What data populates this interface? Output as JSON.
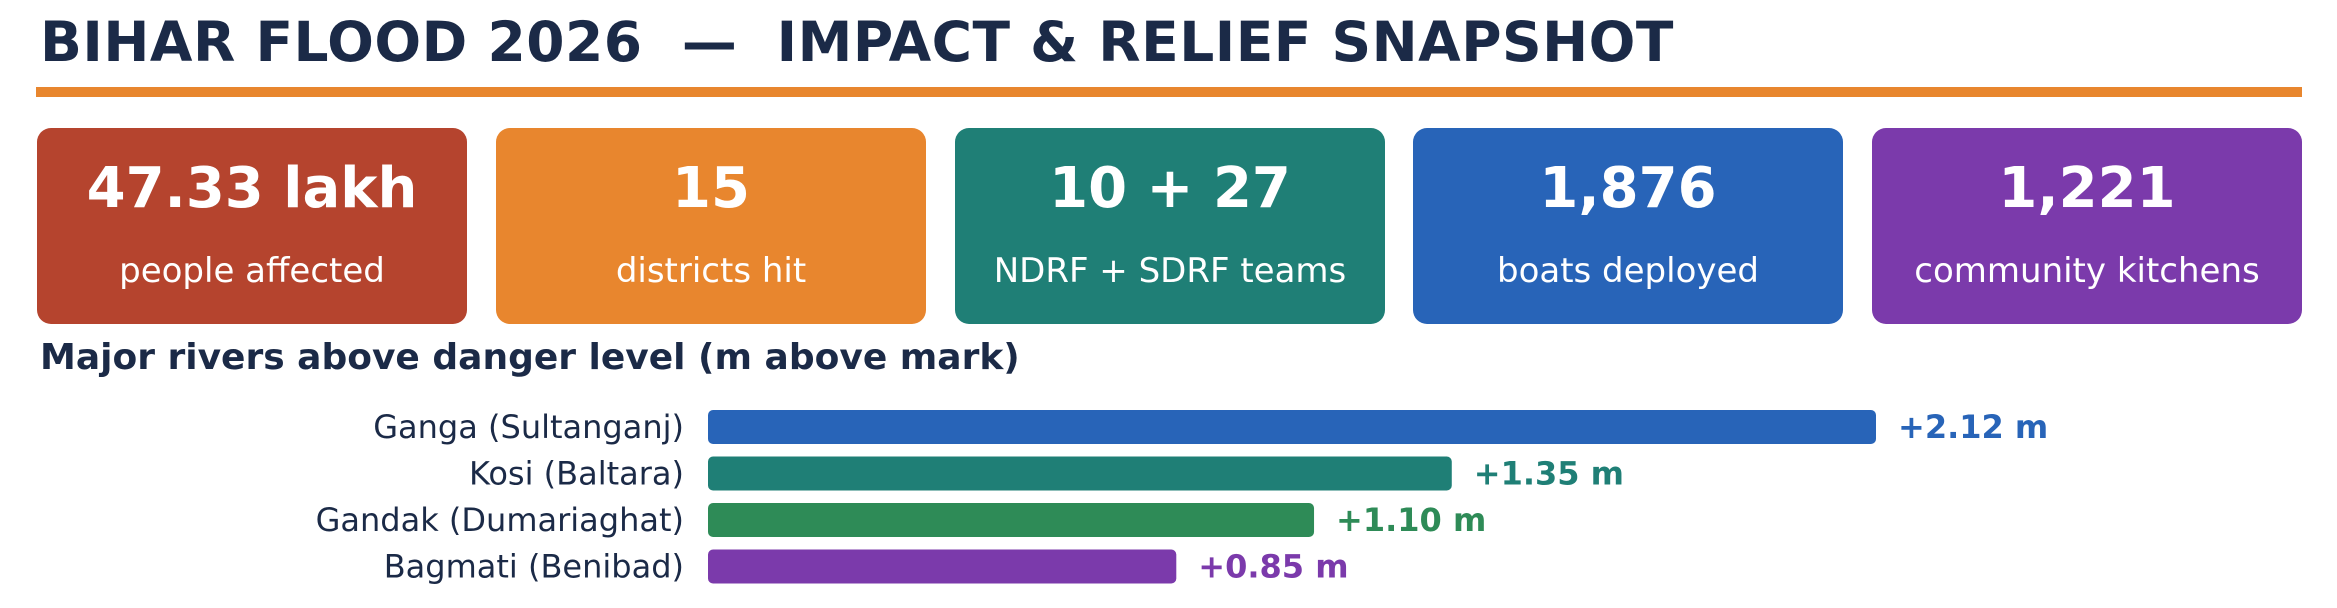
{
  "title": "BIHAR FLOOD 2026  —  IMPACT & RELIEF SNAPSHOT",
  "accent_color": "#e8862e",
  "cards": [
    {
      "value": "47.33 lakh",
      "label": "people affected",
      "color": "#b5442e"
    },
    {
      "value": "15",
      "label": "districts hit",
      "color": "#e8862e"
    },
    {
      "value": "10 + 27",
      "label": "NDRF + SDRF teams",
      "color": "#1f7f76"
    },
    {
      "value": "1,876",
      "label": "boats deployed",
      "color": "#2864b8"
    },
    {
      "value": "1,221",
      "label": "community kitchens",
      "color": "#7b3aab"
    }
  ],
  "chart_data": {
    "type": "bar",
    "orientation": "horizontal",
    "title": "Major rivers above danger level (m above mark)",
    "categories": [
      "Ganga (Sultanganj)",
      "Kosi (Baltara)",
      "Gandak (Dumariaghat)",
      "Bagmati (Benibad)"
    ],
    "values": [
      2.12,
      1.35,
      1.1,
      0.85
    ],
    "value_labels": [
      "+2.12 m",
      "+1.35 m",
      "+1.10 m",
      "+0.85 m"
    ],
    "colors": [
      "#2864b8",
      "#1f7f76",
      "#2e8b57",
      "#7b3aab"
    ],
    "unit": "m",
    "grid": false,
    "legend": "none"
  }
}
